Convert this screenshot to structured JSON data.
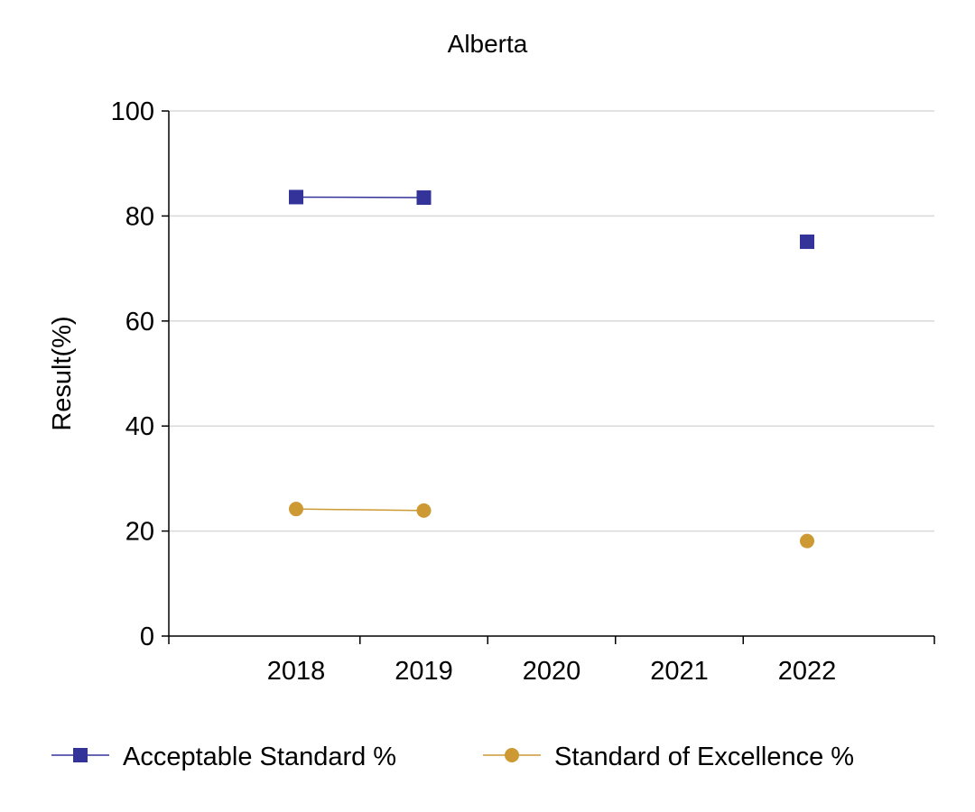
{
  "chart_data": {
    "type": "line",
    "title": "Alberta",
    "xlabel": "",
    "ylabel": "Result(%)",
    "categories": [
      "2018",
      "2019",
      "2020",
      "2021",
      "2022"
    ],
    "ylim": [
      0,
      100
    ],
    "yticks": [
      "0",
      "20",
      "40",
      "60",
      "80",
      "100"
    ],
    "grid": true,
    "legend_position": "bottom",
    "series": [
      {
        "name": "Acceptable Standard %",
        "values": [
          83.6,
          83.5,
          null,
          null,
          75.1
        ],
        "color": "#333399",
        "marker": "square"
      },
      {
        "name": "Standard of Excellence %",
        "values": [
          24.2,
          23.9,
          null,
          null,
          18.1
        ],
        "color": "#cc9933",
        "marker": "circle"
      }
    ]
  }
}
